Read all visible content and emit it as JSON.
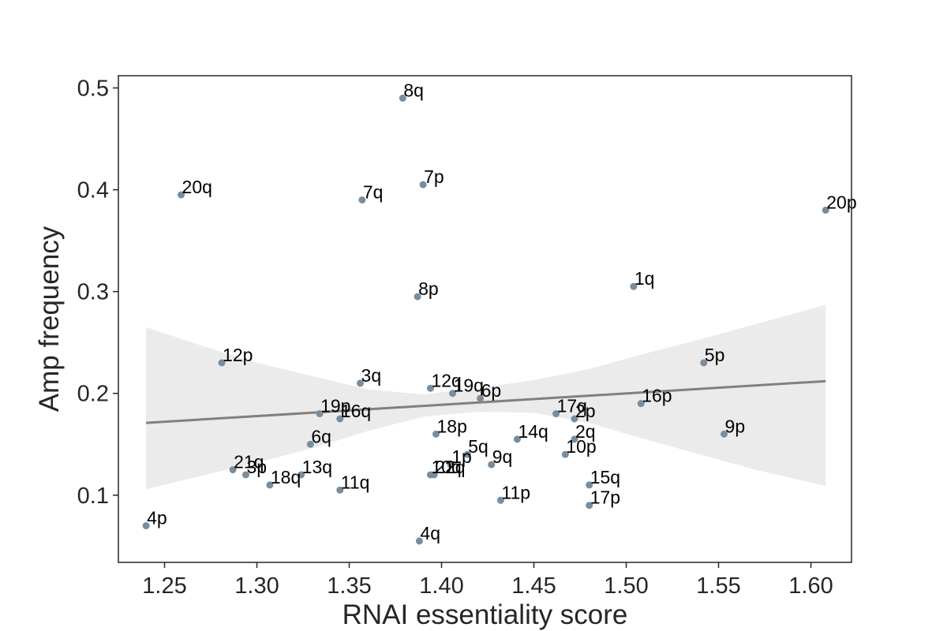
{
  "chart_data": {
    "type": "scatter",
    "title": "",
    "xlabel": "RNAI essentiality score",
    "ylabel": "Amp frequency",
    "xlim": [
      1.225,
      1.622
    ],
    "ylim": [
      0.034,
      0.512
    ],
    "xticks": [
      1.25,
      1.3,
      1.35,
      1.4,
      1.45,
      1.5,
      1.55,
      1.6
    ],
    "xtick_labels": [
      "1.25",
      "1.30",
      "1.35",
      "1.40",
      "1.45",
      "1.50",
      "1.55",
      "1.60"
    ],
    "yticks": [
      0.1,
      0.2,
      0.3,
      0.4,
      0.5
    ],
    "ytick_labels": [
      "0.1",
      "0.2",
      "0.3",
      "0.4",
      "0.5"
    ],
    "grid": false,
    "point_color": "#7a8d9c",
    "regression": {
      "x": [
        1.24,
        1.608
      ],
      "y": [
        0.171,
        0.212
      ],
      "color": "#808080",
      "ci_color": "#ebebeb",
      "ci_x": [
        1.24,
        1.27,
        1.3,
        1.33,
        1.36,
        1.39,
        1.42,
        1.45,
        1.48,
        1.51,
        1.54,
        1.57,
        1.608
      ],
      "ci_upper": [
        0.265,
        0.247,
        0.23,
        0.217,
        0.204,
        0.199,
        0.205,
        0.213,
        0.224,
        0.239,
        0.253,
        0.268,
        0.287
      ],
      "ci_lower": [
        0.106,
        0.119,
        0.132,
        0.146,
        0.163,
        0.177,
        0.182,
        0.181,
        0.171,
        0.155,
        0.14,
        0.125,
        0.109
      ]
    },
    "points": [
      {
        "label": "8q",
        "x": 1.379,
        "y": 0.49
      },
      {
        "label": "7p",
        "x": 1.39,
        "y": 0.405
      },
      {
        "label": "7q",
        "x": 1.357,
        "y": 0.39
      },
      {
        "label": "20q",
        "x": 1.259,
        "y": 0.395
      },
      {
        "label": "20p",
        "x": 1.608,
        "y": 0.38
      },
      {
        "label": "1q",
        "x": 1.504,
        "y": 0.305
      },
      {
        "label": "8p",
        "x": 1.387,
        "y": 0.295
      },
      {
        "label": "12p",
        "x": 1.281,
        "y": 0.23
      },
      {
        "label": "5p",
        "x": 1.542,
        "y": 0.23
      },
      {
        "label": "3q",
        "x": 1.356,
        "y": 0.21
      },
      {
        "label": "12q",
        "x": 1.394,
        "y": 0.205
      },
      {
        "label": "19q",
        "x": 1.406,
        "y": 0.2
      },
      {
        "label": "6p",
        "x": 1.421,
        "y": 0.195
      },
      {
        "label": "16p",
        "x": 1.508,
        "y": 0.19
      },
      {
        "label": "19p",
        "x": 1.334,
        "y": 0.18
      },
      {
        "label": "16q",
        "x": 1.345,
        "y": 0.175
      },
      {
        "label": "17q",
        "x": 1.462,
        "y": 0.18
      },
      {
        "label": "2p",
        "x": 1.472,
        "y": 0.175
      },
      {
        "label": "9p",
        "x": 1.553,
        "y": 0.16
      },
      {
        "label": "18p",
        "x": 1.397,
        "y": 0.16
      },
      {
        "label": "14q",
        "x": 1.441,
        "y": 0.155
      },
      {
        "label": "2q",
        "x": 1.472,
        "y": 0.155
      },
      {
        "label": "6q",
        "x": 1.329,
        "y": 0.15
      },
      {
        "label": "10p",
        "x": 1.467,
        "y": 0.14
      },
      {
        "label": "5q",
        "x": 1.414,
        "y": 0.14
      },
      {
        "label": "1p",
        "x": 1.405,
        "y": 0.13
      },
      {
        "label": "9q",
        "x": 1.427,
        "y": 0.13
      },
      {
        "label": "21q",
        "x": 1.287,
        "y": 0.125
      },
      {
        "label": "3p",
        "x": 1.294,
        "y": 0.12
      },
      {
        "label": "13q",
        "x": 1.324,
        "y": 0.12
      },
      {
        "label": "22q",
        "x": 1.396,
        "y": 0.12
      },
      {
        "label": "10q",
        "x": 1.394,
        "y": 0.12
      },
      {
        "label": "18q",
        "x": 1.307,
        "y": 0.11
      },
      {
        "label": "15q",
        "x": 1.48,
        "y": 0.11
      },
      {
        "label": "11q",
        "x": 1.345,
        "y": 0.105
      },
      {
        "label": "11p",
        "x": 1.432,
        "y": 0.095
      },
      {
        "label": "17p",
        "x": 1.48,
        "y": 0.09
      },
      {
        "label": "4p",
        "x": 1.24,
        "y": 0.07
      },
      {
        "label": "4q",
        "x": 1.388,
        "y": 0.055
      }
    ]
  }
}
